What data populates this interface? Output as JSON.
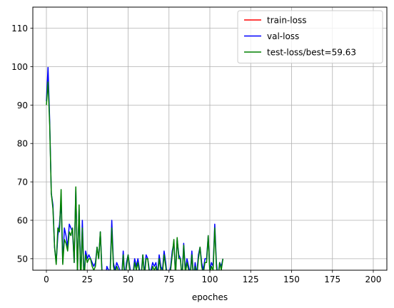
{
  "chart_data": {
    "type": "line",
    "title": "",
    "xlabel": "epoches",
    "ylabel": "",
    "xlim": [
      -8.3,
      208.3
    ],
    "ylim": [
      47,
      115.5
    ],
    "xticks": [
      0,
      25,
      50,
      75,
      100,
      125,
      150,
      175,
      200
    ],
    "xtick_labels": [
      "0",
      "25",
      "50",
      "75",
      "100",
      "125",
      "150",
      "175",
      "200"
    ],
    "yticks": [
      50,
      60,
      70,
      80,
      90,
      100,
      110
    ],
    "ytick_labels": [
      "50",
      "60",
      "70",
      "80",
      "90",
      "100",
      "110"
    ],
    "grid": true,
    "legend_position": "top-right",
    "series": [
      {
        "name": "train-loss",
        "color": "#ff0000",
        "x": [],
        "values": []
      },
      {
        "name": "val-loss",
        "color": "#0000ff",
        "x": [
          0,
          1,
          2,
          3,
          4,
          5,
          6,
          7,
          8,
          9,
          10,
          11,
          12,
          13,
          14,
          15,
          16,
          17,
          18,
          19,
          20,
          21,
          22,
          23,
          24,
          25,
          26,
          27,
          28,
          29,
          30,
          31,
          32,
          33,
          34,
          35,
          36,
          37,
          38,
          39,
          40,
          41,
          42,
          43,
          44,
          45,
          46,
          47,
          48,
          49,
          50,
          51,
          52,
          53,
          54,
          55,
          56,
          57,
          58,
          59,
          60,
          61,
          62,
          63,
          64,
          65,
          66,
          67,
          68,
          69,
          70,
          71,
          72,
          73,
          74,
          75,
          76,
          77,
          78,
          79,
          80,
          81,
          82,
          83,
          84,
          85,
          86,
          87,
          88,
          89,
          90,
          91,
          92,
          93,
          94,
          95,
          96,
          97,
          98,
          99,
          100,
          101,
          102,
          103,
          104,
          105,
          106,
          107,
          108
        ],
        "values": [
          91,
          99.8,
          86,
          67,
          64,
          53,
          49,
          56,
          59,
          65,
          49,
          58,
          56,
          53,
          59,
          58,
          57,
          49,
          68,
          47,
          63,
          44,
          60,
          45,
          52,
          50,
          51,
          50,
          49,
          48,
          49,
          53,
          50,
          57,
          47,
          45,
          44,
          48,
          47,
          47,
          60,
          49,
          47,
          49,
          48,
          47,
          45,
          52,
          45,
          49,
          51,
          48,
          45,
          46,
          50,
          48,
          50,
          47,
          46,
          51,
          46,
          51,
          50,
          47,
          47,
          49,
          48,
          49,
          46,
          51,
          48,
          47,
          52,
          49,
          45,
          46,
          48,
          52,
          54,
          46,
          55,
          51,
          50,
          45,
          54,
          47,
          50,
          48,
          46,
          52,
          45,
          49,
          46,
          51,
          53,
          49,
          47,
          50,
          50,
          56,
          47,
          49,
          48,
          59,
          49,
          45,
          49,
          48,
          50
        ]
      },
      {
        "name": "test-loss/best=59.63",
        "color": "#008000",
        "x": [
          0,
          1,
          2,
          3,
          4,
          5,
          6,
          7,
          8,
          9,
          10,
          11,
          12,
          13,
          14,
          15,
          16,
          17,
          18,
          19,
          20,
          21,
          22,
          23,
          24,
          25,
          26,
          27,
          28,
          29,
          30,
          31,
          32,
          33,
          34,
          35,
          36,
          37,
          38,
          39,
          40,
          41,
          42,
          43,
          44,
          45,
          46,
          47,
          48,
          49,
          50,
          51,
          52,
          53,
          54,
          55,
          56,
          57,
          58,
          59,
          60,
          61,
          62,
          63,
          64,
          65,
          66,
          67,
          68,
          69,
          70,
          71,
          72,
          73,
          74,
          75,
          76,
          77,
          78,
          79,
          80,
          81,
          82,
          83,
          84,
          85,
          86,
          87,
          88,
          89,
          90,
          91,
          92,
          93,
          94,
          95,
          96,
          97,
          98,
          99,
          100,
          101,
          102,
          103,
          104,
          105,
          106,
          107,
          108
        ],
        "values": [
          90,
          96,
          85,
          67,
          63,
          53,
          48.5,
          58,
          57,
          68,
          48.5,
          55,
          54,
          52,
          57,
          56,
          58,
          49,
          68.7,
          46,
          64,
          43,
          58,
          44,
          51,
          49,
          50,
          50,
          48,
          47,
          48,
          53,
          50,
          57,
          46,
          44,
          43,
          47,
          46,
          46,
          58,
          48,
          46,
          48,
          47,
          46,
          44,
          51,
          44,
          48,
          51,
          47,
          44,
          45,
          49,
          47,
          49,
          46,
          45,
          51,
          45,
          50,
          50,
          46,
          46,
          48,
          47,
          48,
          45,
          50,
          47,
          46,
          51,
          48,
          44,
          45,
          47,
          51,
          55,
          45,
          55.5,
          50,
          50,
          44,
          53.5,
          46,
          49,
          47,
          45,
          51,
          44,
          48,
          45,
          50,
          53,
          48,
          46,
          49,
          49,
          56,
          46,
          48,
          47,
          58,
          48,
          44,
          49,
          47,
          50
        ]
      }
    ]
  }
}
